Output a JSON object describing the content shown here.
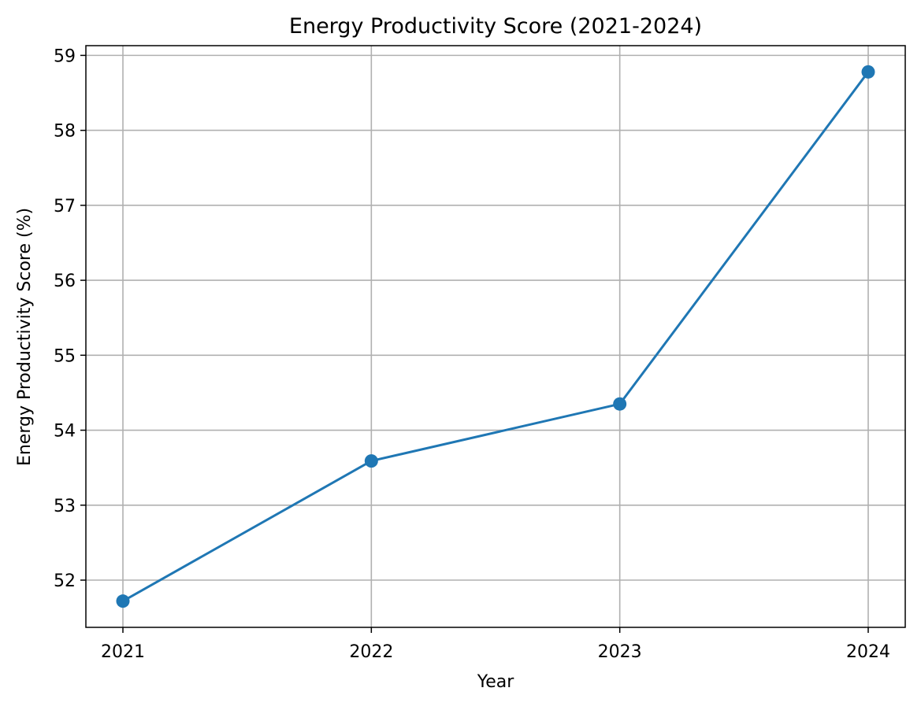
{
  "chart_data": {
    "type": "line",
    "title": "Energy Productivity Score (2021-2024)",
    "xlabel": "Year",
    "ylabel": "Energy Productivity Score (%)",
    "x": [
      "2021",
      "2022",
      "2023",
      "2024"
    ],
    "series": [
      {
        "values": [
          51.72,
          53.59,
          54.35,
          58.78
        ],
        "color": "#1f77b4",
        "marker": "circle"
      }
    ],
    "yticks": [
      52,
      53,
      54,
      55,
      56,
      57,
      58,
      59
    ],
    "ylim": [
      51.37,
      59.13
    ],
    "grid": true,
    "legend": "none"
  }
}
